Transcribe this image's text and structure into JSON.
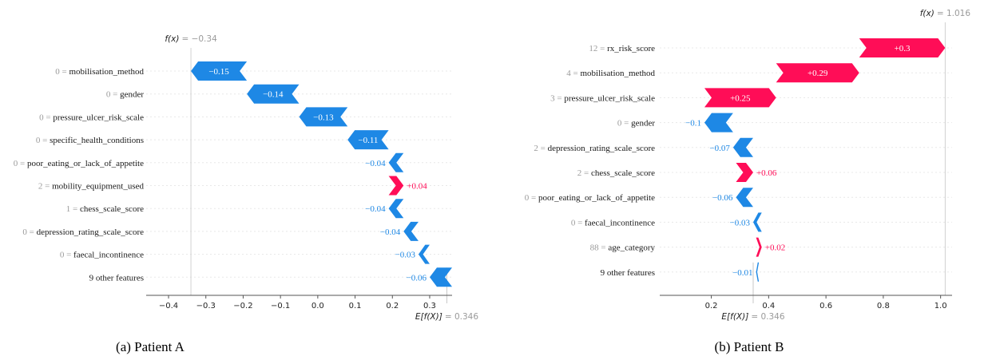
{
  "colors": {
    "positive": "#ff0d57",
    "negative": "#1e88e5",
    "grid": "#e8e8e8",
    "axis": "#555555",
    "muted": "#9a9a9a"
  },
  "chart_data": [
    {
      "type": "waterfall",
      "caption": "(a) Patient A",
      "base_label_prefix": "E[f(X)]",
      "base_value_text": "= 0.346",
      "base_value": 0.346,
      "fx_label_prefix": "f(x)",
      "fx_value_text": "= −0.34",
      "fx_value": -0.34,
      "xlim": [
        -0.46,
        0.36
      ],
      "xticks": [
        -0.4,
        -0.3,
        -0.2,
        -0.1,
        0.0,
        0.1,
        0.2,
        0.3
      ],
      "xtick_labels": [
        "−0.4",
        "−0.3",
        "−0.2",
        "−0.1",
        "0.0",
        "0.1",
        "0.2",
        "0.3"
      ],
      "features": [
        {
          "value": "0",
          "name": "mobilisation_method",
          "contribution": -0.15,
          "text": "−0.15"
        },
        {
          "value": "0",
          "name": "gender",
          "contribution": -0.14,
          "text": "−0.14"
        },
        {
          "value": "0",
          "name": "pressure_ulcer_risk_scale",
          "contribution": -0.13,
          "text": "−0.13"
        },
        {
          "value": "0",
          "name": "specific_health_conditions",
          "contribution": -0.11,
          "text": "−0.11"
        },
        {
          "value": "0",
          "name": "poor_eating_or_lack_of_appetite",
          "contribution": -0.04,
          "text": "−0.04"
        },
        {
          "value": "2",
          "name": "mobility_equipment_used",
          "contribution": 0.04,
          "text": "+0.04"
        },
        {
          "value": "1",
          "name": "chess_scale_score",
          "contribution": -0.04,
          "text": "−0.04"
        },
        {
          "value": "0",
          "name": "depression_rating_scale_score",
          "contribution": -0.04,
          "text": "−0.04"
        },
        {
          "value": "0",
          "name": "faecal_incontinence",
          "contribution": -0.03,
          "text": "−0.03"
        },
        {
          "value": "",
          "name": "9 other features",
          "contribution": -0.06,
          "text": "−0.06"
        }
      ]
    },
    {
      "type": "waterfall",
      "caption": "(b) Patient B",
      "base_label_prefix": "E[f(X)]",
      "base_value_text": "= 0.346",
      "base_value": 0.346,
      "fx_label_prefix": "f(x)",
      "fx_value_text": "= 1.016",
      "fx_value": 1.016,
      "xlim": [
        0.02,
        1.04
      ],
      "xticks": [
        0.2,
        0.4,
        0.6,
        0.8,
        1.0
      ],
      "xtick_labels": [
        "0.2",
        "0.4",
        "0.6",
        "0.8",
        "1.0"
      ],
      "features": [
        {
          "value": "12",
          "name": "rx_risk_score",
          "contribution": 0.3,
          "text": "+0.3"
        },
        {
          "value": "4",
          "name": "mobilisation_method",
          "contribution": 0.29,
          "text": "+0.29"
        },
        {
          "value": "3",
          "name": "pressure_ulcer_risk_scale",
          "contribution": 0.25,
          "text": "+0.25"
        },
        {
          "value": "0",
          "name": "gender",
          "contribution": -0.1,
          "text": "−0.1"
        },
        {
          "value": "2",
          "name": "depression_rating_scale_score",
          "contribution": -0.07,
          "text": "−0.07"
        },
        {
          "value": "2",
          "name": "chess_scale_score",
          "contribution": 0.06,
          "text": "+0.06"
        },
        {
          "value": "0",
          "name": "poor_eating_or_lack_of_appetite",
          "contribution": -0.06,
          "text": "−0.06"
        },
        {
          "value": "0",
          "name": "faecal_incontinence",
          "contribution": -0.03,
          "text": "−0.03"
        },
        {
          "value": "88",
          "name": "age_category",
          "contribution": 0.02,
          "text": "+0.02"
        },
        {
          "value": "",
          "name": "9 other features",
          "contribution": -0.01,
          "text": "−0.01"
        }
      ]
    }
  ]
}
